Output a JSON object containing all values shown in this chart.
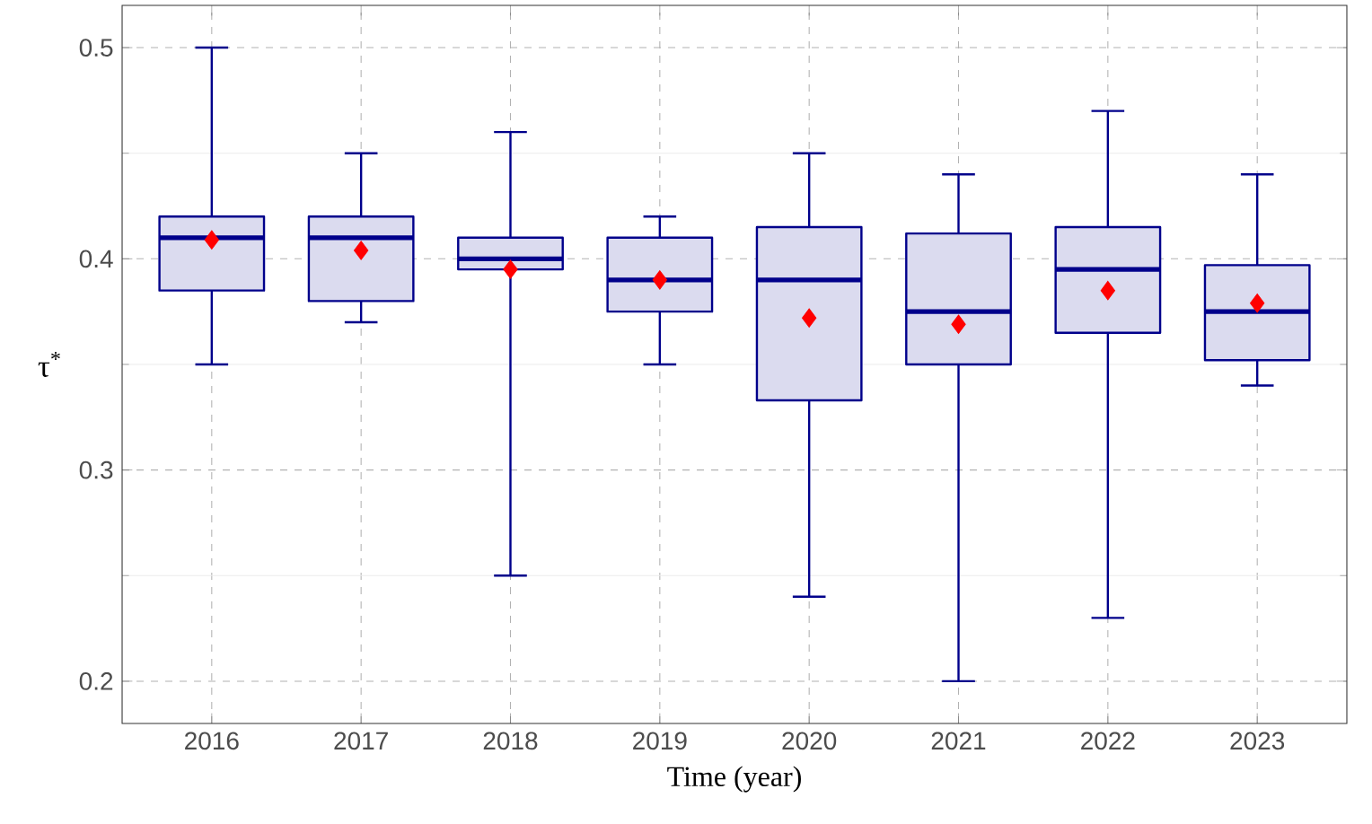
{
  "chart_data": {
    "type": "box",
    "xlabel": "Time (year)",
    "ylabel": "τ$^{*}$",
    "categories": [
      "2016",
      "2017",
      "2018",
      "2019",
      "2020",
      "2021",
      "2022",
      "2023"
    ],
    "ylim": [
      0.18,
      0.52
    ],
    "yticks": [
      0.2,
      0.3,
      0.4,
      0.5
    ],
    "grid": true,
    "series": [
      {
        "type": "box",
        "color": "#00008b",
        "boxes": [
          {
            "low": 0.35,
            "q1": 0.385,
            "median": 0.41,
            "q3": 0.42,
            "high": 0.5
          },
          {
            "low": 0.37,
            "q1": 0.38,
            "median": 0.41,
            "q3": 0.42,
            "high": 0.45
          },
          {
            "low": 0.25,
            "q1": 0.395,
            "median": 0.4,
            "q3": 0.41,
            "high": 0.46
          },
          {
            "low": 0.35,
            "q1": 0.375,
            "median": 0.39,
            "q3": 0.41,
            "high": 0.42
          },
          {
            "low": 0.24,
            "q1": 0.333,
            "median": 0.39,
            "q3": 0.415,
            "high": 0.45
          },
          {
            "low": 0.2,
            "q1": 0.35,
            "median": 0.375,
            "q3": 0.412,
            "high": 0.44
          },
          {
            "low": 0.23,
            "q1": 0.365,
            "median": 0.395,
            "q3": 0.415,
            "high": 0.47
          },
          {
            "low": 0.34,
            "q1": 0.352,
            "median": 0.375,
            "q3": 0.397,
            "high": 0.44
          }
        ]
      },
      {
        "type": "scatter",
        "color": "#ff0000",
        "marker": "diamond",
        "values": [
          0.409,
          0.404,
          0.395,
          0.39,
          0.372,
          0.369,
          0.385,
          0.379
        ]
      }
    ]
  }
}
